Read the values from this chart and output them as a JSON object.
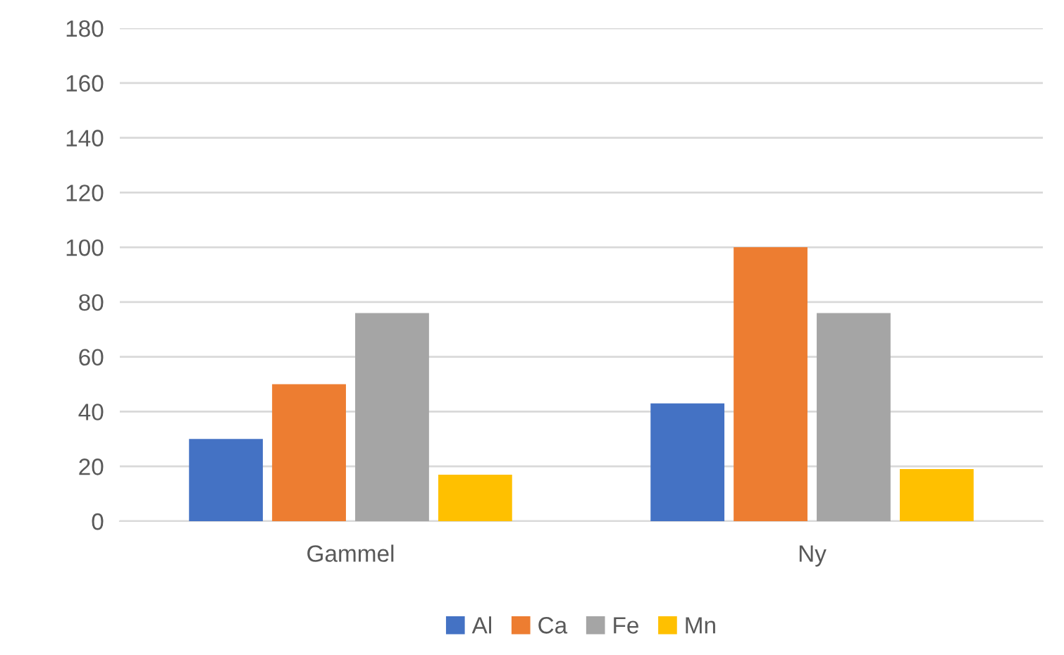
{
  "chart_data": {
    "type": "bar",
    "categories": [
      "Gammel",
      "Ny"
    ],
    "series": [
      {
        "name": "Al",
        "color": "#4472c4",
        "values": [
          30,
          43
        ]
      },
      {
        "name": "Ca",
        "color": "#ed7d31",
        "values": [
          50,
          100
        ]
      },
      {
        "name": "Fe",
        "color": "#a5a5a5",
        "values": [
          76,
          76
        ]
      },
      {
        "name": "Mn",
        "color": "#ffc000",
        "values": [
          17,
          19
        ]
      }
    ],
    "ylim": [
      0,
      180
    ],
    "yticks": [
      0,
      20,
      40,
      60,
      80,
      100,
      120,
      140,
      160,
      180
    ],
    "grid": "y",
    "legend": "bottom"
  }
}
